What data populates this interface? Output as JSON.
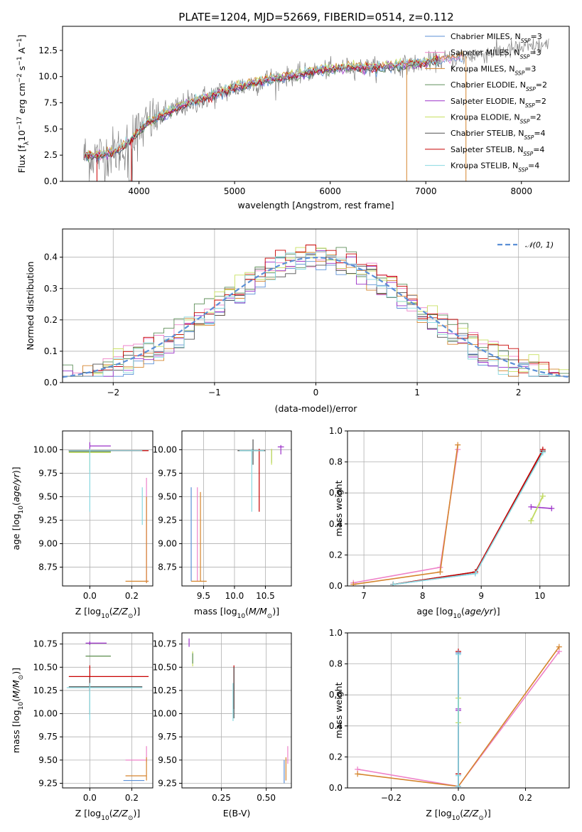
{
  "figure": {
    "title": "PLATE=1204, MJD=52669, FIBERID=0514, z=0.112"
  },
  "colors": {
    "chabrier_miles": "#5b8fd6",
    "salpeter_miles": "#ee82c8",
    "kroupa_miles": "#d5852e",
    "chabrier_elodie": "#5f8f5a",
    "salpeter_elodie": "#9b30c8",
    "kroupa_elodie": "#c8e060",
    "chabrier_stelib": "#505050",
    "salpeter_stelib": "#c80000",
    "kroupa_stelib": "#88d8e0",
    "data": "#808080",
    "normal": "#5b8fd6"
  },
  "chart_data": [
    {
      "id": "spectrum",
      "type": "line",
      "xlabel": "wavelength [Angstrom, rest frame]",
      "ylabel": "Flux [f_λ10^-17 erg cm^-2 s^-1 A^-1]",
      "xlim": [
        3200,
        8500
      ],
      "ylim": [
        0,
        14.8
      ],
      "xticks": [
        4000,
        5000,
        6000,
        7000,
        8000
      ],
      "yticks": [
        0.0,
        2.5,
        5.0,
        7.5,
        10.0,
        12.5
      ],
      "grid": false,
      "legend_position": "right",
      "legend": [
        "Chabrier MILES, N_SSP=3",
        "Salpeter MILES, N_SSP=3",
        "Kroupa MILES, N_SSP=3",
        "Chabrier ELODIE, N_SSP=2",
        "Salpeter ELODIE, N_SSP=2",
        "Kroupa ELODIE, N_SSP=2",
        "Chabrier STELIB, N_SSP=4",
        "Salpeter STELIB, N_SSP=4",
        "Kroupa STELIB, N_SSP=4"
      ],
      "continuum": {
        "x": [
          3400,
          3600,
          3800,
          3950,
          4100,
          4300,
          4500,
          4700,
          5000,
          5300,
          5600,
          5900,
          6200,
          6500,
          6800,
          7100,
          7400,
          7700,
          8000,
          8300
        ],
        "y": [
          2.4,
          2.5,
          3.0,
          4.3,
          5.6,
          6.6,
          7.4,
          8.0,
          8.9,
          9.6,
          10.1,
          10.6,
          10.9,
          10.9,
          11.1,
          11.5,
          11.9,
          12.3,
          12.7,
          13.0
        ]
      }
    },
    {
      "id": "residuals",
      "type": "step",
      "xlabel": "(data-model)/error",
      "ylabel": "Normed distribution",
      "xlim": [
        -2.5,
        2.5
      ],
      "ylim": [
        0,
        0.49
      ],
      "xticks": [
        -2,
        -1,
        0,
        1,
        2
      ],
      "yticks": [
        0.0,
        0.1,
        0.2,
        0.3,
        0.4
      ],
      "grid": true,
      "legend_position": "top-right",
      "legend": [
        "𝒩(0, 1)"
      ]
    },
    {
      "id": "age_vs_Z",
      "type": "errorbar",
      "xlabel": "Z [log10(Z/Z⊙)]",
      "ylabel": "age  [log10(age/yr)]",
      "xlim": [
        -0.13,
        0.3
      ],
      "ylim": [
        8.55,
        10.2
      ],
      "xticks": [
        0.0,
        0.2
      ],
      "yticks": [
        8.75,
        9.0,
        9.25,
        9.5,
        9.75,
        10.0
      ],
      "grid": true,
      "points": [
        {
          "s": "chabrier_miles",
          "x": 0.0,
          "y": 9.99,
          "xe": [
            0.1,
            0.2
          ],
          "ye": [
            0.01,
            0.01
          ]
        },
        {
          "s": "salpeter_miles",
          "x": 0.27,
          "y": 8.6,
          "xe": [
            0.01,
            0.01
          ],
          "ye": [
            0.02,
            1.1
          ]
        },
        {
          "s": "kroupa_miles",
          "x": 0.27,
          "y": 8.6,
          "xe": [
            0.1,
            0.01
          ],
          "ye": [
            0.02,
            0.9
          ]
        },
        {
          "s": "chabrier_elodie",
          "x": 0.0,
          "y": 9.98,
          "xe": [
            0.1,
            0.1
          ],
          "ye": [
            0.02,
            0.02
          ]
        },
        {
          "s": "salpeter_elodie",
          "x": 0.0,
          "y": 10.04,
          "xe": [
            0.0,
            0.1
          ],
          "ye": [
            0.04,
            0.04
          ]
        },
        {
          "s": "kroupa_elodie",
          "x": 0.0,
          "y": 9.97,
          "xe": [
            0.1,
            0.1
          ],
          "ye": [
            0.2,
            0.02
          ]
        },
        {
          "s": "chabrier_stelib",
          "x": 0.0,
          "y": 9.99,
          "xe": [
            0.1,
            0.25
          ],
          "ye": [
            0.02,
            0.02
          ]
        },
        {
          "s": "salpeter_stelib",
          "x": 0.0,
          "y": 9.99,
          "xe": [
            0.1,
            0.28
          ],
          "ye": [
            0.01,
            0.01
          ]
        },
        {
          "s": "kroupa_stelib",
          "x": 0.0,
          "y": 9.99,
          "xe": [
            0.1,
            0.25
          ],
          "ye": [
            0.65,
            0.02
          ]
        },
        {
          "s": "kroupa_stelib",
          "x": 0.25,
          "y": 9.5,
          "xe": [
            0.0,
            0.0
          ],
          "ye": [
            0.3,
            0.1
          ]
        }
      ]
    },
    {
      "id": "age_vs_mass",
      "type": "errorbar",
      "xlabel": "mass [log10(M/M⊙)]",
      "ylabel": "",
      "xlim": [
        9.15,
        10.92
      ],
      "ylim": [
        8.55,
        10.2
      ],
      "xticks": [
        9.5,
        10.0,
        10.5
      ],
      "yticks": [
        8.75,
        9.0,
        9.25,
        9.5,
        9.75,
        10.0
      ],
      "grid": true,
      "points": [
        {
          "s": "chabrier_miles",
          "x": 9.3,
          "y": 8.6,
          "xe": [
            0.0,
            0.0
          ],
          "ye": [
            0.0,
            1.0
          ]
        },
        {
          "s": "salpeter_miles",
          "x": 9.4,
          "y": 8.6,
          "xe": [
            0.0,
            0.0
          ],
          "ye": [
            0.0,
            1.0
          ]
        },
        {
          "s": "kroupa_miles",
          "x": 9.45,
          "y": 8.6,
          "xe": [
            0.15,
            0.1
          ],
          "ye": [
            0.0,
            0.95
          ]
        },
        {
          "s": "chabrier_elodie",
          "x": 10.6,
          "y": 9.96,
          "xe": [
            0.0,
            0.0
          ],
          "ye": [
            0.1,
            0.04
          ]
        },
        {
          "s": "salpeter_elodie",
          "x": 10.75,
          "y": 10.03,
          "xe": [
            0.05,
            0.05
          ],
          "ye": [
            0.08,
            0.02
          ]
        },
        {
          "s": "kroupa_elodie",
          "x": 10.6,
          "y": 9.97,
          "xe": [
            0.0,
            0.0
          ],
          "ye": [
            0.13,
            0.04
          ]
        },
        {
          "s": "chabrier_stelib",
          "x": 10.3,
          "y": 9.99,
          "xe": [
            0.25,
            0.2
          ],
          "ye": [
            0.15,
            0.12
          ]
        },
        {
          "s": "salpeter_stelib",
          "x": 10.4,
          "y": 9.99,
          "xe": [
            0.0,
            0.0
          ],
          "ye": [
            0.65,
            0.02
          ]
        },
        {
          "s": "kroupa_stelib",
          "x": 10.28,
          "y": 9.99,
          "xe": [
            0.2,
            0.2
          ],
          "ye": [
            0.65,
            0.02
          ]
        }
      ]
    },
    {
      "id": "weight_vs_age",
      "type": "line",
      "xlabel": "age  [log10(age/yr)]",
      "ylabel": "mass weight",
      "xlim": [
        6.72,
        10.5
      ],
      "ylim": [
        0.0,
        1.0
      ],
      "xticks": [
        7,
        8,
        9,
        10
      ],
      "yticks": [
        0.0,
        0.2,
        0.4,
        0.6,
        0.8,
        1.0
      ],
      "grid": true,
      "series": [
        {
          "s": "salpeter_miles",
          "x": [
            6.82,
            8.3,
            8.6
          ],
          "y": [
            0.02,
            0.12,
            0.88
          ]
        },
        {
          "s": "kroupa_miles",
          "x": [
            6.82,
            8.3,
            8.6
          ],
          "y": [
            0.01,
            0.09,
            0.91
          ]
        },
        {
          "s": "chabrier_miles",
          "x": [
            7.5,
            8.9,
            10.05
          ],
          "y": [
            0.01,
            0.08,
            0.87
          ]
        },
        {
          "s": "chabrier_stelib",
          "x": [
            7.5,
            8.9,
            10.05
          ],
          "y": [
            0.01,
            0.09,
            0.87
          ]
        },
        {
          "s": "salpeter_stelib",
          "x": [
            7.5,
            8.9,
            10.05
          ],
          "y": [
            0.01,
            0.09,
            0.88
          ]
        },
        {
          "s": "kroupa_stelib",
          "x": [
            7.5,
            8.9,
            10.05
          ],
          "y": [
            0.01,
            0.08,
            0.86
          ]
        },
        {
          "s": "salpeter_elodie",
          "x": [
            9.85,
            10.2
          ],
          "y": [
            0.51,
            0.5
          ]
        },
        {
          "s": "chabrier_elodie",
          "x": [
            9.85,
            10.05
          ],
          "y": [
            0.42,
            0.58
          ]
        },
        {
          "s": "kroupa_elodie",
          "x": [
            9.85,
            10.05
          ],
          "y": [
            0.42,
            0.58
          ]
        }
      ]
    },
    {
      "id": "mass_vs_Z",
      "type": "errorbar",
      "xlabel": "Z [log10(Z/Z⊙)]",
      "ylabel": "mass [log10(M/M⊙)]",
      "xlim": [
        -0.13,
        0.3
      ],
      "ylim": [
        9.2,
        10.87
      ],
      "xticks": [
        0.0,
        0.2
      ],
      "yticks": [
        9.25,
        9.5,
        9.75,
        10.0,
        10.25,
        10.5,
        10.75
      ],
      "grid": true,
      "points": [
        {
          "s": "salpeter_elodie",
          "x": 0.0,
          "y": 10.76,
          "xe": [
            0.02,
            0.08
          ],
          "ye": [
            0.02,
            0.02
          ]
        },
        {
          "s": "kroupa_elodie",
          "x": 0.0,
          "y": 10.62,
          "xe": [
            0.02,
            0.1
          ],
          "ye": [
            0.0,
            0.0
          ]
        },
        {
          "s": "chabrier_elodie",
          "x": 0.0,
          "y": 10.62,
          "xe": [
            0.02,
            0.1
          ],
          "ye": [
            0.0,
            0.0
          ]
        },
        {
          "s": "salpeter_stelib",
          "x": 0.0,
          "y": 10.4,
          "xe": [
            0.1,
            0.28
          ],
          "ye": [
            0.15,
            0.12
          ]
        },
        {
          "s": "chabrier_stelib",
          "x": 0.0,
          "y": 10.29,
          "xe": [
            0.1,
            0.25
          ],
          "ye": [
            0.3,
            0.1
          ]
        },
        {
          "s": "kroupa_stelib",
          "x": 0.0,
          "y": 10.28,
          "xe": [
            0.11,
            0.25
          ],
          "ye": [
            0.35,
            0.05
          ]
        },
        {
          "s": "chabrier_miles",
          "x": 0.16,
          "y": 9.28,
          "xe": [
            0.0,
            0.1
          ],
          "ye": [
            0.0,
            0.0
          ]
        },
        {
          "s": "salpeter_miles",
          "x": 0.27,
          "y": 9.5,
          "xe": [
            0.1,
            0.0
          ],
          "ye": [
            0.02,
            0.15
          ]
        },
        {
          "s": "kroupa_miles",
          "x": 0.27,
          "y": 9.33,
          "xe": [
            0.1,
            0.0
          ],
          "ye": [
            0.05,
            0.2
          ]
        }
      ]
    },
    {
      "id": "mass_vs_EBV",
      "type": "errorbar",
      "xlabel": "E(B-V)",
      "ylabel": "",
      "xlim": [
        0.03,
        0.64
      ],
      "ylim": [
        9.2,
        10.87
      ],
      "xticks": [
        0.25,
        0.5
      ],
      "yticks": [
        9.25,
        9.5,
        9.75,
        10.0,
        10.25,
        10.5,
        10.75
      ],
      "grid": true,
      "points": [
        {
          "s": "salpeter_elodie",
          "x": 0.07,
          "y": 10.76,
          "xe": [
            0.0,
            0.0
          ],
          "ye": [
            0.04,
            0.05
          ]
        },
        {
          "s": "kroupa_elodie",
          "x": 0.09,
          "y": 10.62,
          "xe": [
            0.0,
            0.0
          ],
          "ye": [
            0.11,
            0.05
          ]
        },
        {
          "s": "chabrier_elodie",
          "x": 0.09,
          "y": 10.62,
          "xe": [
            0.0,
            0.0
          ],
          "ye": [
            0.08,
            0.03
          ]
        },
        {
          "s": "salpeter_stelib",
          "x": 0.32,
          "y": 10.4,
          "xe": [
            0.0,
            0.0
          ],
          "ye": [
            0.35,
            0.12
          ]
        },
        {
          "s": "chabrier_stelib",
          "x": 0.32,
          "y": 10.35,
          "xe": [
            0.0,
            0.0
          ],
          "ye": [
            0.4,
            0.15
          ]
        },
        {
          "s": "kroupa_stelib",
          "x": 0.315,
          "y": 10.28,
          "xe": [
            0.0,
            0.0
          ],
          "ye": [
            0.36,
            0.05
          ]
        },
        {
          "s": "chabrier_miles",
          "x": 0.6,
          "y": 9.3,
          "xe": [
            0.0,
            0.0
          ],
          "ye": [
            0.05,
            0.2
          ]
        },
        {
          "s": "salpeter_miles",
          "x": 0.62,
          "y": 9.5,
          "xe": [
            0.0,
            0.0
          ],
          "ye": [
            0.04,
            0.15
          ]
        },
        {
          "s": "kroupa_miles",
          "x": 0.61,
          "y": 9.33,
          "xe": [
            0.0,
            0.0
          ],
          "ye": [
            0.05,
            0.2
          ]
        }
      ]
    },
    {
      "id": "weight_vs_Z",
      "type": "line",
      "xlabel": "Z [log10(Z/Z⊙)]",
      "ylabel": "mass weight",
      "xlim": [
        -0.33,
        0.33
      ],
      "ylim": [
        0.0,
        1.0
      ],
      "xticks": [
        -0.2,
        0.0,
        0.2
      ],
      "yticks": [
        0.0,
        0.2,
        0.4,
        0.6,
        0.8,
        1.0
      ],
      "grid": true,
      "series": [
        {
          "s": "salpeter_miles",
          "x": [
            -0.3,
            0.0,
            0.3
          ],
          "y": [
            0.12,
            0.01,
            0.88
          ]
        },
        {
          "s": "kroupa_miles",
          "x": [
            -0.3,
            0.0,
            0.3
          ],
          "y": [
            0.09,
            0.01,
            0.91
          ]
        },
        {
          "s": "chabrier_stelib",
          "x": [
            0.0,
            0.0,
            0.0
          ],
          "y": [
            0.01,
            0.09,
            0.87
          ]
        },
        {
          "s": "salpeter_stelib",
          "x": [
            0.0,
            0.0,
            0.0
          ],
          "y": [
            0.01,
            0.09,
            0.88
          ]
        },
        {
          "s": "chabrier_miles",
          "x": [
            0.0,
            0.0,
            0.0
          ],
          "y": [
            0.01,
            0.08,
            0.87
          ]
        },
        {
          "s": "salpeter_elodie",
          "x": [
            0.0,
            0.0
          ],
          "y": [
            0.5,
            0.51
          ]
        },
        {
          "s": "chabrier_elodie",
          "x": [
            0.0,
            0.0
          ],
          "y": [
            0.42,
            0.58
          ]
        },
        {
          "s": "kroupa_elodie",
          "x": [
            0.0,
            0.0
          ],
          "y": [
            0.42,
            0.58
          ]
        },
        {
          "s": "kroupa_stelib",
          "x": [
            0.0,
            0.0,
            0.0
          ],
          "y": [
            0.01,
            0.08,
            0.86
          ]
        }
      ]
    }
  ]
}
